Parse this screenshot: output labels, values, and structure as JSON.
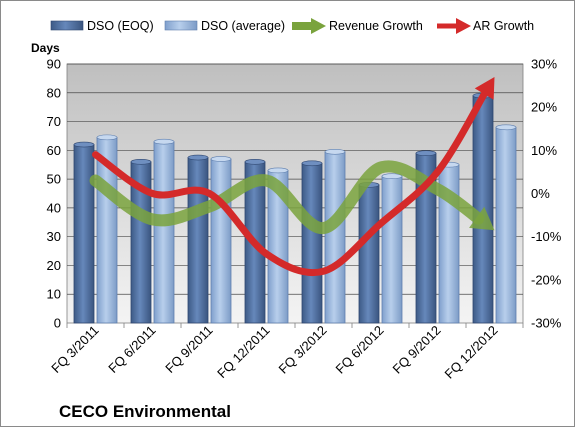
{
  "chart_data": {
    "type": "bar",
    "title": "CECO Environmental",
    "ylabel_left": "Days",
    "categories": [
      "FQ 3/2011",
      "FQ 6/2011",
      "FQ 9/2011",
      "FQ 12/2011",
      "FQ 3/2012",
      "FQ 6/2012",
      "FQ 9/2012",
      "FQ 12/2012"
    ],
    "ylim_left": [
      0,
      90
    ],
    "yticks_left": [
      0,
      10,
      20,
      30,
      40,
      50,
      60,
      70,
      80,
      90
    ],
    "ylim_right": [
      -30,
      30
    ],
    "yticks_right": [
      "-30%",
      "-20%",
      "-10%",
      "0%",
      "10%",
      "20%",
      "30%"
    ],
    "yticks_right_values": [
      -30,
      -20,
      -10,
      0,
      10,
      20,
      30
    ],
    "legend_position": "top",
    "grid": true,
    "series": [
      {
        "name": "DSO (EOQ)",
        "kind": "bar",
        "axis": "left",
        "color": "#4f6f9f",
        "values": [
          62,
          56,
          57.5,
          56,
          55.5,
          48,
          59,
          79
        ]
      },
      {
        "name": "DSO (average)",
        "kind": "bar",
        "axis": "left",
        "color": "#9dbbe0",
        "values": [
          64.5,
          63,
          57,
          53,
          59.5,
          51,
          55,
          68
        ]
      },
      {
        "name": "Revenue Growth",
        "kind": "arrow-line",
        "axis": "right",
        "color": "#7aa33d",
        "values": [
          3,
          -6,
          -3,
          3,
          -8,
          6,
          1,
          -8.5
        ]
      },
      {
        "name": "AR Growth",
        "kind": "arrow-line",
        "axis": "right",
        "color": "#d42a2a",
        "values": [
          9,
          0,
          0,
          -14,
          -18,
          -7,
          5,
          27
        ]
      }
    ]
  }
}
